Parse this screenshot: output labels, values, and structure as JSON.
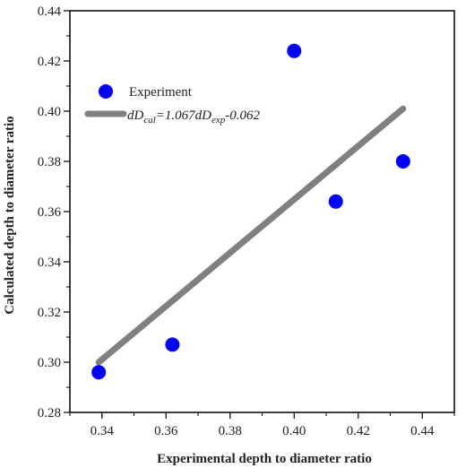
{
  "chart_data": {
    "type": "scatter",
    "xlabel": "Experimental depth to diameter ratio",
    "ylabel": "Calculated depth to diameter ratio",
    "xlim": [
      0.33,
      0.45
    ],
    "ylim": [
      0.28,
      0.44
    ],
    "x_ticks": [
      "0.34",
      "0.36",
      "0.38",
      "0.40",
      "0.42",
      "0.44"
    ],
    "y_ticks": [
      "0.28",
      "0.30",
      "0.32",
      "0.34",
      "0.36",
      "0.38",
      "0.40",
      "0.42",
      "0.44"
    ],
    "series": [
      {
        "name": "Experiment",
        "kind": "scatter",
        "color": "#0000ff",
        "points": [
          {
            "x": 0.339,
            "y": 0.296
          },
          {
            "x": 0.362,
            "y": 0.307
          },
          {
            "x": 0.4,
            "y": 0.424
          },
          {
            "x": 0.413,
            "y": 0.364
          },
          {
            "x": 0.434,
            "y": 0.38
          }
        ]
      },
      {
        "kind": "line",
        "color": "#808080",
        "points": [
          {
            "x": 0.339,
            "y": 0.3
          },
          {
            "x": 0.434,
            "y": 0.401
          }
        ]
      }
    ],
    "legend": {
      "position": "top-left",
      "entries": [
        {
          "label": "Experiment",
          "symbol": "circle",
          "color": "#0000ff"
        },
        {
          "prefix": "dD",
          "sub1": "cal",
          "mid": "=1.067dD",
          "sub2": "exp",
          "suffix": "-0.062",
          "symbol": "line",
          "color": "#808080"
        }
      ]
    },
    "grid": false
  }
}
